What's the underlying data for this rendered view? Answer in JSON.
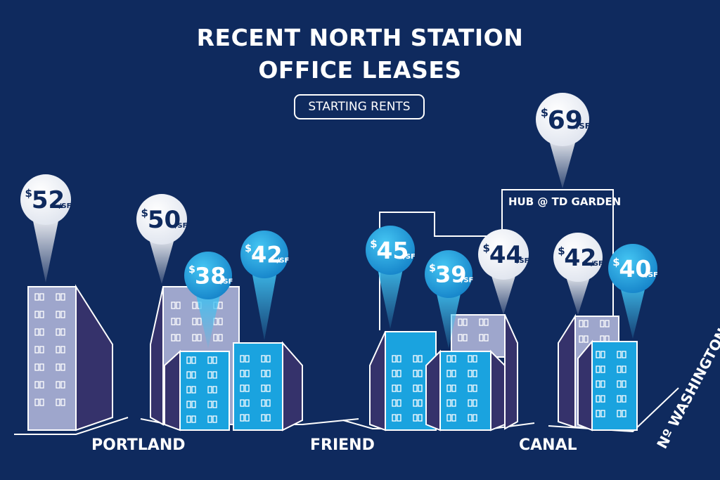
{
  "title": {
    "line1": "RECENT NORTH STATION",
    "line2": "OFFICE LEASES"
  },
  "subtitle": "STARTING RENTS",
  "colors": {
    "background": "#0f2a5e",
    "white": "#ffffff",
    "building_gray": "#9ea6cc",
    "building_gray_side": "#35326b",
    "building_blue": "#1aa3df",
    "building_blue_side": "#2e2d69",
    "pin_white_text": "#0f2a5e",
    "pin_blue": "#1a9ad8",
    "pin_blue_light": "#37bdf0"
  },
  "streets": {
    "portland": "PORTLAND",
    "friend": "FRIEND",
    "canal": "CANAL",
    "washington": "Nº WASHINGTON"
  },
  "outline_label": "HUB @ TD GARDEN",
  "pins": [
    {
      "id": "52",
      "currency": "$",
      "price": "52",
      "unit": "/SF",
      "style": "white"
    },
    {
      "id": "50",
      "currency": "$",
      "price": "50",
      "unit": "/SF",
      "style": "white"
    },
    {
      "id": "38",
      "currency": "$",
      "price": "38",
      "unit": "/SF",
      "style": "blue"
    },
    {
      "id": "42a",
      "currency": "$",
      "price": "42",
      "unit": "/SF",
      "style": "blue"
    },
    {
      "id": "45",
      "currency": "$",
      "price": "45",
      "unit": "/SF",
      "style": "blue"
    },
    {
      "id": "39",
      "currency": "$",
      "price": "39",
      "unit": "/SF",
      "style": "blue"
    },
    {
      "id": "44",
      "currency": "$",
      "price": "44",
      "unit": "/SF",
      "style": "white"
    },
    {
      "id": "69",
      "currency": "$",
      "price": "69",
      "unit": "/SF",
      "style": "white"
    },
    {
      "id": "42b",
      "currency": "$",
      "price": "42",
      "unit": "/SF",
      "style": "white"
    },
    {
      "id": "40",
      "currency": "$",
      "price": "40",
      "unit": "/SF",
      "style": "blue"
    }
  ]
}
